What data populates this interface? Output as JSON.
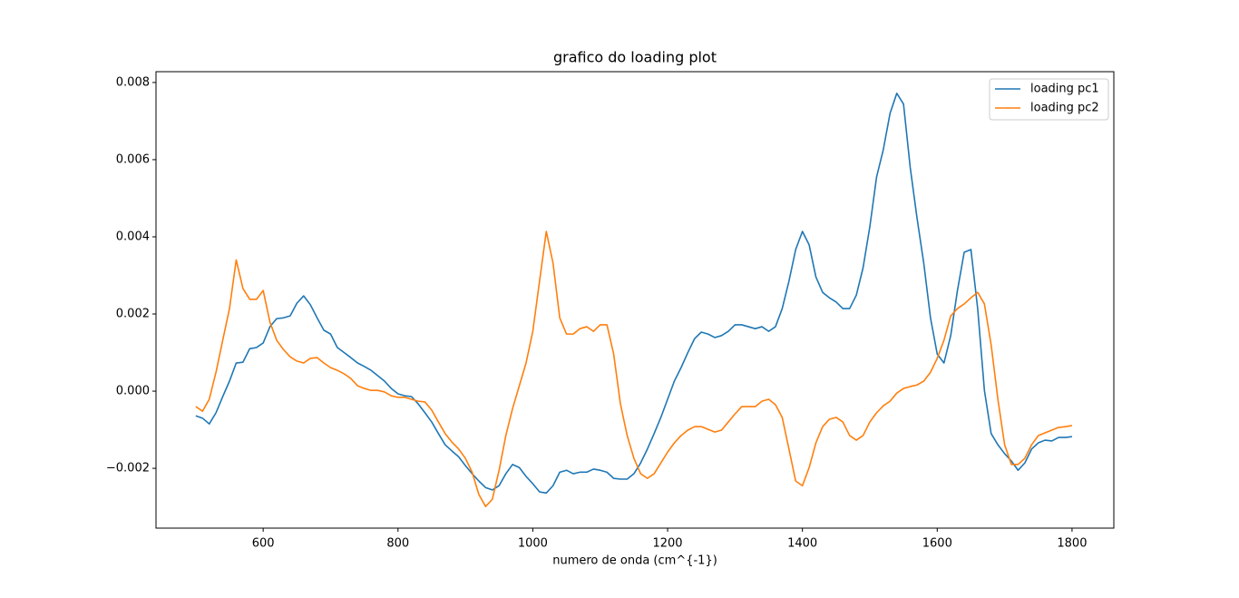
{
  "chart_data": {
    "type": "line",
    "title": "grafico do loading plot",
    "xlabel": "numero de onda (cm^{-1})",
    "x": [
      500,
      510,
      520,
      530,
      540,
      550,
      560,
      570,
      580,
      590,
      600,
      610,
      620,
      630,
      640,
      650,
      660,
      670,
      680,
      690,
      700,
      710,
      720,
      730,
      740,
      750,
      760,
      770,
      780,
      790,
      800,
      810,
      820,
      830,
      840,
      850,
      860,
      870,
      880,
      890,
      900,
      910,
      920,
      930,
      940,
      950,
      960,
      970,
      980,
      990,
      1000,
      1010,
      1020,
      1030,
      1040,
      1050,
      1060,
      1070,
      1080,
      1090,
      1100,
      1110,
      1120,
      1130,
      1140,
      1150,
      1160,
      1170,
      1180,
      1190,
      1200,
      1210,
      1220,
      1230,
      1240,
      1250,
      1260,
      1270,
      1280,
      1290,
      1300,
      1310,
      1320,
      1330,
      1340,
      1350,
      1360,
      1370,
      1380,
      1390,
      1400,
      1410,
      1420,
      1430,
      1440,
      1450,
      1460,
      1470,
      1480,
      1490,
      1500,
      1510,
      1520,
      1530,
      1540,
      1550,
      1560,
      1570,
      1580,
      1590,
      1600,
      1610,
      1620,
      1630,
      1640,
      1650,
      1660,
      1670,
      1680,
      1690,
      1700,
      1710,
      1720,
      1730,
      1740,
      1750,
      1760,
      1770,
      1780,
      1790,
      1800
    ],
    "series": [
      {
        "name": "loading pc1",
        "color": "#1f77b4",
        "values": [
          -0.00064,
          -0.0007,
          -0.00085,
          -0.00056,
          -0.00014,
          0.00026,
          0.00073,
          0.00075,
          0.0011,
          0.00113,
          0.00125,
          0.00167,
          0.00188,
          0.0019,
          0.00195,
          0.00228,
          0.00247,
          0.00224,
          0.0019,
          0.00158,
          0.00148,
          0.00113,
          0.001,
          0.00087,
          0.00073,
          0.00064,
          0.00054,
          0.0004,
          0.00026,
          7e-05,
          -7e-05,
          -0.00012,
          -0.00014,
          -0.00033,
          -0.00056,
          -0.0008,
          -0.0011,
          -0.00139,
          -0.00155,
          -0.0017,
          -0.00193,
          -0.00214,
          -0.00233,
          -0.0025,
          -0.00256,
          -0.00245,
          -0.00214,
          -0.0019,
          -0.00198,
          -0.00221,
          -0.0024,
          -0.00261,
          -0.00264,
          -0.00245,
          -0.0021,
          -0.00205,
          -0.00214,
          -0.0021,
          -0.0021,
          -0.00202,
          -0.00205,
          -0.0021,
          -0.00226,
          -0.00228,
          -0.00228,
          -0.00214,
          -0.00186,
          -0.0015,
          -0.0011,
          -0.00068,
          -0.00021,
          0.00026,
          0.00061,
          0.001,
          0.00136,
          0.00153,
          0.00148,
          0.00139,
          0.00144,
          0.00155,
          0.00172,
          0.00172,
          0.00167,
          0.00162,
          0.00167,
          0.00155,
          0.00167,
          0.00214,
          0.00285,
          0.00367,
          0.00414,
          0.00379,
          0.00296,
          0.00256,
          0.00242,
          0.00231,
          0.00214,
          0.00214,
          0.00249,
          0.0032,
          0.00426,
          0.00555,
          0.00626,
          0.0072,
          0.00772,
          0.00744,
          0.00579,
          0.00449,
          0.00332,
          0.0019,
          0.00096,
          0.00073,
          0.00144,
          0.00261,
          0.0036,
          0.00367,
          0.00214,
          2e-05,
          -0.0011,
          -0.00139,
          -0.00162,
          -0.00181,
          -0.00205,
          -0.00186,
          -0.0015,
          -0.00134,
          -0.00127,
          -0.00129,
          -0.0012,
          -0.0012,
          -0.00118
        ]
      },
      {
        "name": "loading pc2",
        "color": "#ff7f0e",
        "values": [
          -0.0004,
          -0.00052,
          -0.00021,
          0.00049,
          0.00132,
          0.00214,
          0.0034,
          0.00266,
          0.00238,
          0.00238,
          0.00261,
          0.00179,
          0.00132,
          0.00108,
          0.00089,
          0.00078,
          0.00073,
          0.00085,
          0.00087,
          0.00073,
          0.00061,
          0.00054,
          0.00045,
          0.00033,
          0.00014,
          7e-05,
          2e-05,
          2e-05,
          -2e-05,
          -0.00012,
          -0.00016,
          -0.00016,
          -0.00021,
          -0.00026,
          -0.00028,
          -0.00049,
          -0.0008,
          -0.0011,
          -0.00132,
          -0.0015,
          -0.00174,
          -0.0021,
          -0.00268,
          -0.00299,
          -0.0028,
          -0.00205,
          -0.00115,
          -0.00045,
          0.00014,
          0.00073,
          0.00155,
          0.00285,
          0.00414,
          0.00332,
          0.0019,
          0.00148,
          0.00148,
          0.00162,
          0.00167,
          0.00155,
          0.00172,
          0.00172,
          0.00096,
          -0.00033,
          -0.00115,
          -0.00174,
          -0.00214,
          -0.00226,
          -0.00214,
          -0.00186,
          -0.00158,
          -0.00134,
          -0.00115,
          -0.00101,
          -0.00092,
          -0.00092,
          -0.00099,
          -0.00106,
          -0.00101,
          -0.0008,
          -0.00059,
          -0.0004,
          -0.0004,
          -0.0004,
          -0.00026,
          -0.00021,
          -0.00035,
          -0.00068,
          -0.0015,
          -0.00233,
          -0.00245,
          -0.00198,
          -0.00134,
          -0.00092,
          -0.00073,
          -0.00068,
          -0.0008,
          -0.00115,
          -0.00127,
          -0.00115,
          -0.0008,
          -0.00056,
          -0.00038,
          -0.00026,
          -5e-05,
          7e-05,
          0.00012,
          0.00016,
          0.00026,
          0.00049,
          0.00085,
          0.00132,
          0.00195,
          0.00214,
          0.00226,
          0.00242,
          0.00256,
          0.00226,
          0.0012,
          -0.00021,
          -0.00139,
          -0.0019,
          -0.0019,
          -0.00174,
          -0.00139,
          -0.00115,
          -0.00108,
          -0.00101,
          -0.00094,
          -0.00092,
          -0.00089
        ]
      }
    ],
    "xlim": [
      441,
      1862
    ],
    "ylim": [
      -0.00355,
      0.00828
    ],
    "xticks": [
      600,
      800,
      1000,
      1200,
      1400,
      1600,
      1800
    ],
    "yticks": [
      {
        "value": -0.002,
        "label": "−0.002"
      },
      {
        "value": 0,
        "label": "0.000"
      },
      0.002,
      0.004,
      0.006,
      0.008
    ],
    "legend": "upper right"
  }
}
